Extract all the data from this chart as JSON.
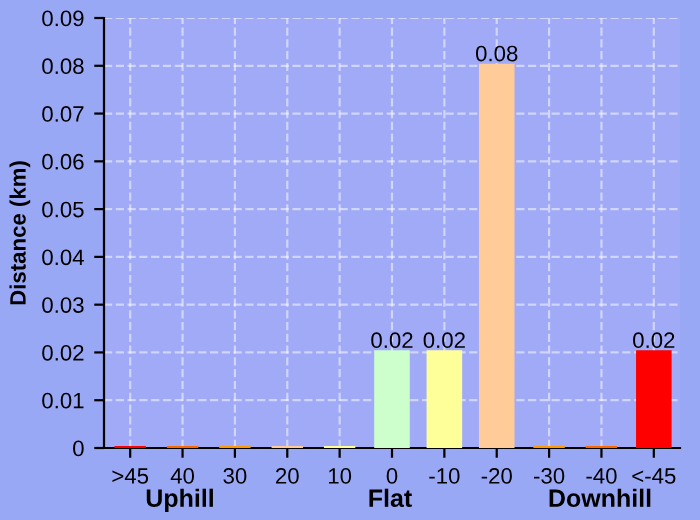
{
  "chart_data": {
    "type": "bar",
    "ylabel": "Distance (km)",
    "categories": [
      ">45",
      "40",
      "30",
      "20",
      "10",
      "0",
      "-10",
      "-20",
      "-30",
      "-40",
      "<-45"
    ],
    "values": [
      0,
      0,
      0,
      0,
      0,
      0.02,
      0.02,
      0.08,
      0,
      0,
      0.02
    ],
    "colors": [
      "#ff0000",
      "#ff6600",
      "#ff9900",
      "#ffcc99",
      "#ffff99",
      "#ccffcc",
      "#ffff99",
      "#ffcc99",
      "#ff9900",
      "#ff6600",
      "#ff0000"
    ],
    "value_labels": [
      null,
      null,
      null,
      null,
      null,
      "0.02",
      "0.02",
      "0.08",
      null,
      null,
      "0.02"
    ],
    "ylim": [
      0,
      0.09
    ],
    "yticks": [
      0,
      0.01,
      0.02,
      0.03,
      0.04,
      0.05,
      0.06,
      0.07,
      0.08,
      0.09
    ],
    "annotations": [
      "Uphill",
      "Flat",
      "Downhill"
    ],
    "grid": true
  }
}
